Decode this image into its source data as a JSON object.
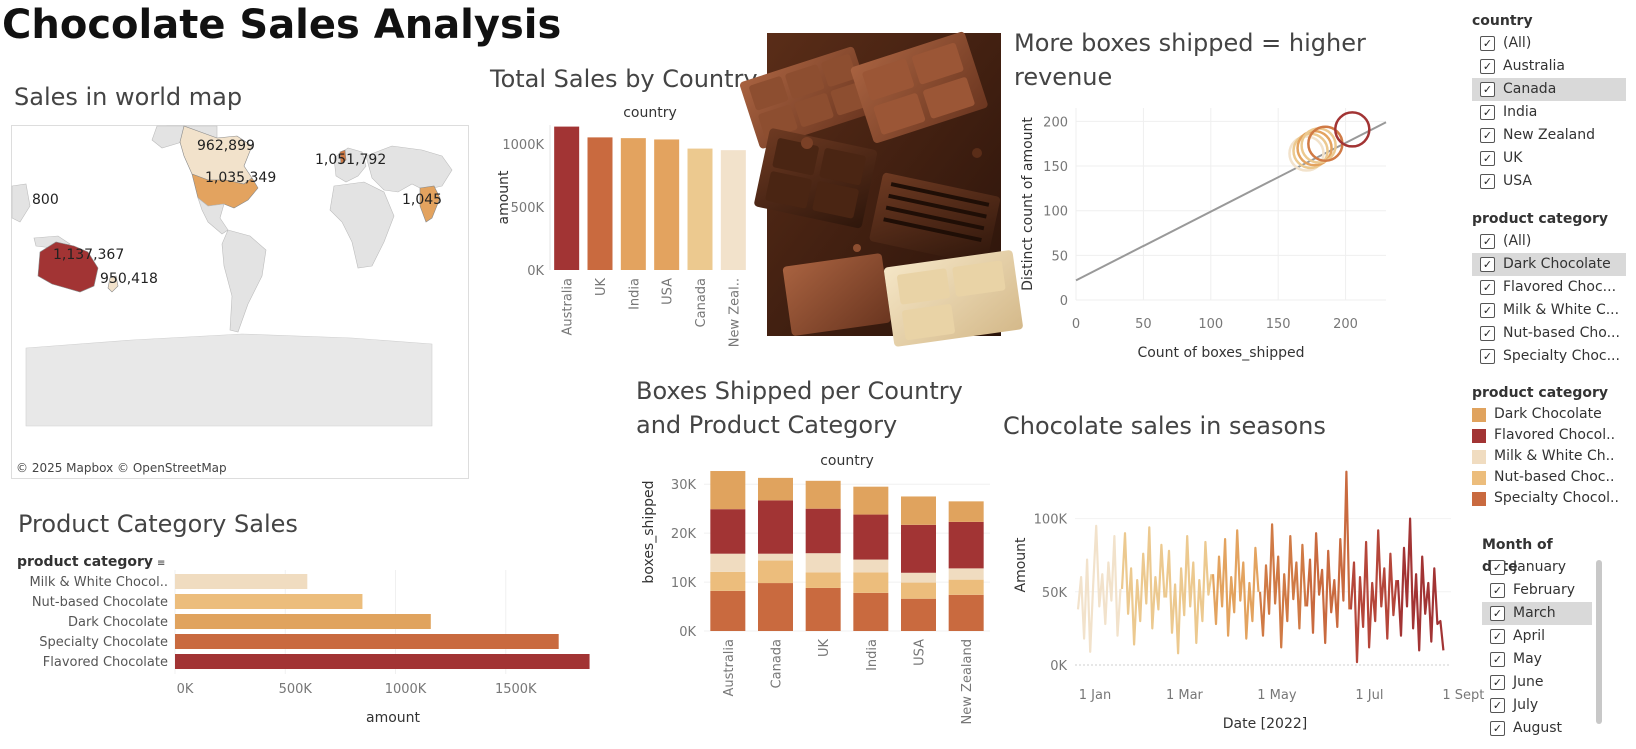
{
  "dashboard": {
    "title": "Chocolate Sales Analysis"
  },
  "colors": {
    "dark_chocolate": "#e0a35e",
    "flavored_chocolate": "#a23434",
    "milk_white": "#f0dcc0",
    "nut_based": "#ecbd7c",
    "specialty": "#c96a3f",
    "sales_scale": [
      "#f2e2cb",
      "#ecc98f",
      "#e3a35f",
      "#d07a45",
      "#a23434"
    ]
  },
  "map": {
    "title": "Sales in world map",
    "copyright": "© 2025 Mapbox © OpenStreetMap",
    "labels": [
      "962,899",
      "1,051,792",
      "1,035,349",
      "800",
      "1,045",
      "1,137,367",
      "950,418"
    ]
  },
  "image": {
    "subject": "chocolate-bars-photo"
  },
  "filters": {
    "country": {
      "title": "country",
      "items": [
        {
          "label": "(All)",
          "checked": true,
          "selected": false
        },
        {
          "label": "Australia",
          "checked": true,
          "selected": false
        },
        {
          "label": "Canada",
          "checked": true,
          "selected": true
        },
        {
          "label": "India",
          "checked": true,
          "selected": false
        },
        {
          "label": "New Zealand",
          "checked": true,
          "selected": false
        },
        {
          "label": "UK",
          "checked": true,
          "selected": false
        },
        {
          "label": "USA",
          "checked": true,
          "selected": false
        }
      ]
    },
    "product_category": {
      "title": "product category",
      "items": [
        {
          "label": "(All)",
          "checked": true,
          "selected": false
        },
        {
          "label": "Dark Chocolate",
          "checked": true,
          "selected": true
        },
        {
          "label": "Flavored Choc...",
          "checked": true,
          "selected": false
        },
        {
          "label": "Milk & White C...",
          "checked": true,
          "selected": false
        },
        {
          "label": "Nut-based Cho...",
          "checked": true,
          "selected": false
        },
        {
          "label": "Specialty Choc...",
          "checked": true,
          "selected": false
        }
      ]
    },
    "legend": {
      "title": "product category",
      "items": [
        {
          "label": "Dark Chocolate",
          "color": "#e0a35e"
        },
        {
          "label": "Flavored Chocol..",
          "color": "#a23434"
        },
        {
          "label": "Milk & White Ch..",
          "color": "#f0dcc0"
        },
        {
          "label": "Nut-based Choc..",
          "color": "#ecbd7c"
        },
        {
          "label": "Specialty Chocol..",
          "color": "#c96a3f"
        }
      ]
    },
    "month": {
      "title": "Month of date",
      "items": [
        {
          "label": "January",
          "checked": true,
          "selected": false
        },
        {
          "label": "February",
          "checked": true,
          "selected": false
        },
        {
          "label": "March",
          "checked": true,
          "selected": true
        },
        {
          "label": "April",
          "checked": true,
          "selected": false
        },
        {
          "label": "May",
          "checked": true,
          "selected": false
        },
        {
          "label": "June",
          "checked": true,
          "selected": false
        },
        {
          "label": "July",
          "checked": true,
          "selected": false
        },
        {
          "label": "August",
          "checked": true,
          "selected": false
        }
      ]
    }
  },
  "chart_data": [
    {
      "id": "total_sales_by_country",
      "type": "bar",
      "title": "Total Sales by Country",
      "header": "country",
      "ylabel": "amount",
      "categories": [
        "Australia",
        "UK",
        "India",
        "USA",
        "Canada",
        "New Zeal.."
      ],
      "values": [
        1137367,
        1051792,
        1045800,
        1035349,
        962899,
        950418
      ],
      "colors": [
        "#a23434",
        "#c96a3f",
        "#e3a35f",
        "#e3a35f",
        "#ecc98f",
        "#f2e2cb"
      ],
      "ylim": [
        0,
        1150000
      ],
      "yticks": [
        {
          "value": 0,
          "label": "0K"
        },
        {
          "value": 500000,
          "label": "500K"
        },
        {
          "value": 1000000,
          "label": "1000K"
        }
      ]
    },
    {
      "id": "boxes_vs_revenue",
      "type": "scatter",
      "title": "More boxes shipped = higher revenue",
      "xlabel": "Count of boxes_shipped",
      "ylabel": "Distinct count of amount",
      "xlim": [
        0,
        230
      ],
      "ylim": [
        0,
        215
      ],
      "xticks": [
        {
          "value": 0,
          "label": "0"
        },
        {
          "value": 50,
          "label": "50"
        },
        {
          "value": 100,
          "label": "100"
        },
        {
          "value": 150,
          "label": "150"
        },
        {
          "value": 200,
          "label": "200"
        }
      ],
      "yticks": [
        {
          "value": 0,
          "label": "0"
        },
        {
          "value": 50,
          "label": "50"
        },
        {
          "value": 100,
          "label": "100"
        },
        {
          "value": 150,
          "label": "150"
        },
        {
          "value": 200,
          "label": "200"
        }
      ],
      "points": [
        {
          "x": 171,
          "y": 164,
          "color": "#f2e2cb"
        },
        {
          "x": 174,
          "y": 167,
          "color": "#ecc98f"
        },
        {
          "x": 177,
          "y": 170,
          "color": "#e3a35f"
        },
        {
          "x": 180,
          "y": 173,
          "color": "#ecc98f"
        },
        {
          "x": 185,
          "y": 175,
          "color": "#d07a45"
        },
        {
          "x": 205,
          "y": 191,
          "color": "#a23434"
        }
      ],
      "trend": [
        {
          "x": 0,
          "y": 22
        },
        {
          "x": 230,
          "y": 199
        }
      ]
    },
    {
      "id": "product_category_sales",
      "type": "bar",
      "orientation": "horizontal",
      "title": "Product Category Sales",
      "header": "product category",
      "xlabel": "amount",
      "categories": [
        "Milk & White Chocol..",
        "Nut-based Chocolate",
        "Dark Chocolate",
        "Specialty Chocolate",
        "Flavored Chocolate"
      ],
      "values": [
        600000,
        850000,
        1160000,
        1740000,
        1880000
      ],
      "colors": [
        "#f0dcc0",
        "#ecbd7c",
        "#e0a35e",
        "#c96a3f",
        "#a23434"
      ],
      "xlim": [
        0,
        1950000
      ],
      "xticks": [
        {
          "value": 0,
          "label": "0K"
        },
        {
          "value": 500000,
          "label": "500K"
        },
        {
          "value": 1000000,
          "label": "1000K"
        },
        {
          "value": 1500000,
          "label": "1500K"
        }
      ]
    },
    {
      "id": "boxes_per_country_category",
      "type": "bar",
      "stacked": true,
      "title": "Boxes Shipped per Country and Product Category",
      "header": "country",
      "ylabel": "boxes_shipped",
      "categories": [
        "Australia",
        "Canada",
        "UK",
        "India",
        "USA",
        "New Zealand"
      ],
      "ylim": [
        0,
        32500
      ],
      "yticks": [
        {
          "value": 0,
          "label": "0K"
        },
        {
          "value": 10000,
          "label": "10K"
        },
        {
          "value": 20000,
          "label": "20K"
        },
        {
          "value": 30000,
          "label": "30K"
        }
      ],
      "series": [
        {
          "name": "Specialty Chocolate",
          "color": "#c96a3f",
          "values": [
            8200,
            9800,
            8800,
            7800,
            6600,
            7400
          ]
        },
        {
          "name": "Nut-based Chocolate",
          "color": "#ecbd7c",
          "values": [
            3900,
            4600,
            3200,
            4200,
            3300,
            3100
          ]
        },
        {
          "name": "Milk & White Chocolate",
          "color": "#f0dcc0",
          "values": [
            3700,
            1400,
            3900,
            2600,
            2000,
            2300
          ]
        },
        {
          "name": "Flavored Chocolate",
          "color": "#a23434",
          "values": [
            9100,
            10900,
            9100,
            9200,
            9800,
            9500
          ]
        },
        {
          "name": "Dark Chocolate",
          "color": "#e0a35e",
          "values": [
            7800,
            4600,
            5700,
            5700,
            5800,
            4200
          ]
        }
      ]
    },
    {
      "id": "sales_in_seasons",
      "type": "line",
      "title": "Chocolate sales in seasons",
      "xlabel": "Date [2022]",
      "ylabel": "Amount",
      "xlim": [
        0,
        248
      ],
      "ylim": [
        0,
        140000
      ],
      "xticks": [
        {
          "value": 0,
          "label": "1 Jan"
        },
        {
          "value": 59,
          "label": "1 Mar"
        },
        {
          "value": 120,
          "label": "1 May"
        },
        {
          "value": 181,
          "label": "1 Jul"
        },
        {
          "value": 243,
          "label": "1 Sept"
        }
      ],
      "yticks": [
        {
          "value": 0,
          "label": "0K"
        },
        {
          "value": 50000,
          "label": "50K"
        },
        {
          "value": 100000,
          "label": "100K"
        }
      ],
      "series": [
        {
          "name": "January",
          "color": "#f2e2cb",
          "values": [
            [
              2,
              38000
            ],
            [
              4,
              60000
            ],
            [
              6,
              18000
            ],
            [
              8,
              72000
            ],
            [
              10,
              9000
            ],
            [
              12,
              55000
            ],
            [
              14,
              95000
            ],
            [
              16,
              40000
            ],
            [
              18,
              62000
            ],
            [
              20,
              28000
            ],
            [
              22,
              70000
            ],
            [
              24,
              44000
            ],
            [
              26,
              88000
            ],
            [
              28,
              20000
            ],
            [
              30,
              52000
            ]
          ]
        },
        {
          "name": "February",
          "color": "#ecc98f",
          "values": [
            [
              31,
              52000
            ],
            [
              33,
              90000
            ],
            [
              35,
              35000
            ],
            [
              37,
              66000
            ],
            [
              39,
              14000
            ],
            [
              41,
              58000
            ],
            [
              43,
              30000
            ],
            [
              45,
              76000
            ],
            [
              47,
              42000
            ],
            [
              49,
              94000
            ],
            [
              51,
              25000
            ],
            [
              53,
              60000
            ],
            [
              55,
              38000
            ],
            [
              57,
              82000
            ],
            [
              59,
              46000
            ]
          ]
        },
        {
          "name": "March",
          "color": "#ecc98f",
          "values": [
            [
              60,
              46000
            ],
            [
              62,
              78000
            ],
            [
              64,
              22000
            ],
            [
              66,
              55000
            ],
            [
              68,
              8000
            ],
            [
              70,
              66000
            ],
            [
              72,
              34000
            ],
            [
              74,
              88000
            ],
            [
              76,
              40000
            ],
            [
              78,
              70000
            ],
            [
              80,
              15000
            ],
            [
              82,
              58000
            ],
            [
              84,
              30000
            ],
            [
              86,
              84000
            ],
            [
              88,
              48000
            ],
            [
              90,
              62000
            ]
          ]
        },
        {
          "name": "April",
          "color": "#e3a35f",
          "values": [
            [
              91,
              62000
            ],
            [
              93,
              28000
            ],
            [
              95,
              74000
            ],
            [
              97,
              40000
            ],
            [
              99,
              86000
            ],
            [
              101,
              20000
            ],
            [
              103,
              60000
            ],
            [
              105,
              36000
            ],
            [
              107,
              92000
            ],
            [
              109,
              44000
            ],
            [
              111,
              70000
            ],
            [
              113,
              18000
            ],
            [
              115,
              56000
            ],
            [
              117,
              30000
            ],
            [
              119,
              80000
            ],
            [
              121,
              50000
            ]
          ]
        },
        {
          "name": "May",
          "color": "#d07a45",
          "values": [
            [
              122,
              50000
            ],
            [
              124,
              20000
            ],
            [
              126,
              68000
            ],
            [
              128,
              35000
            ],
            [
              130,
              96000
            ],
            [
              132,
              42000
            ],
            [
              134,
              74000
            ],
            [
              136,
              12000
            ],
            [
              138,
              62000
            ],
            [
              140,
              30000
            ],
            [
              142,
              88000
            ],
            [
              144,
              45000
            ],
            [
              146,
              70000
            ],
            [
              148,
              25000
            ],
            [
              150,
              82000
            ],
            [
              152,
              40000
            ]
          ]
        },
        {
          "name": "June",
          "color": "#c96a3f",
          "values": [
            [
              153,
              40000
            ],
            [
              155,
              72000
            ],
            [
              157,
              22000
            ],
            [
              159,
              90000
            ],
            [
              161,
              48000
            ],
            [
              163,
              65000
            ],
            [
              165,
              15000
            ],
            [
              167,
              78000
            ],
            [
              169,
              36000
            ],
            [
              171,
              58000
            ],
            [
              173,
              26000
            ],
            [
              175,
              86000
            ],
            [
              177,
              44000
            ],
            [
              179,
              132000
            ],
            [
              181,
              38000
            ]
          ]
        },
        {
          "name": "July",
          "color": "#b5463a",
          "values": [
            [
              182,
              38000
            ],
            [
              184,
              70000
            ],
            [
              186,
              2000
            ],
            [
              188,
              60000
            ],
            [
              190,
              26000
            ],
            [
              192,
              84000
            ],
            [
              194,
              12000
            ],
            [
              196,
              56000
            ],
            [
              198,
              30000
            ],
            [
              200,
              92000
            ],
            [
              202,
              40000
            ],
            [
              204,
              66000
            ],
            [
              206,
              18000
            ],
            [
              208,
              76000
            ],
            [
              210,
              34000
            ],
            [
              212,
              58000
            ]
          ]
        },
        {
          "name": "August",
          "color": "#a23434",
          "values": [
            [
              213,
              58000
            ],
            [
              215,
              20000
            ],
            [
              217,
              80000
            ],
            [
              219,
              40000
            ],
            [
              221,
              100000
            ],
            [
              223,
              25000
            ],
            [
              225,
              62000
            ],
            [
              227,
              10000
            ],
            [
              229,
              74000
            ],
            [
              231,
              35000
            ],
            [
              233,
              56000
            ],
            [
              235,
              16000
            ],
            [
              237,
              66000
            ],
            [
              239,
              28000
            ],
            [
              241,
              30000
            ],
            [
              243,
              10000
            ]
          ]
        }
      ]
    }
  ]
}
